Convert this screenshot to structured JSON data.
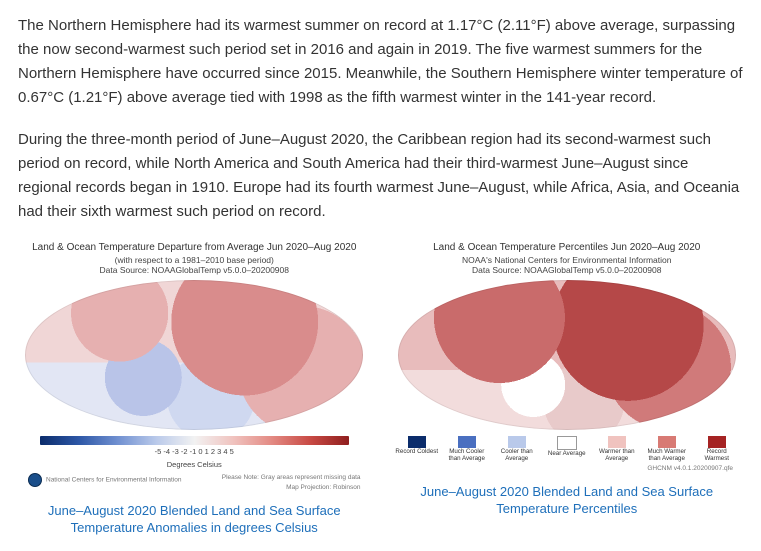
{
  "paragraphs": {
    "p1": "The Northern Hemisphere had its warmest summer on record at 1.17°C (2.11°F) above average, surpassing the now second-warmest such period set in 2016 and again in 2019. The five warmest summers for the Northern Hemisphere have occurred since 2015. Meanwhile, the Southern Hemisphere winter temperature of 0.67°C (1.21°F) above average tied with 1998 as the fifth warmest winter in the 141-year record.",
    "p2": "During the three-month period of June–August 2020, the Caribbean region had its second-warmest such period on record, while North America and South America had their third-warmest June–August since regional records began in 1910. Europe had its fourth warmest June–August, while Africa, Asia, and Oceania had their sixth warmest such period on record."
  },
  "figures": {
    "left": {
      "title": "Land & Ocean Temperature Departure from Average Jun 2020–Aug 2020",
      "subtitle1": "(with respect to a 1981–2010 base period)",
      "subtitle2": "Data Source: NOAAGlobalTemp v5.0.0–20200908",
      "legend_units": "Degrees Celsius",
      "legend_ticks": "-5  -4  -3  -2  -1   0   1   2   3   4   5",
      "gradient": {
        "stops": [
          "#0b2c6b",
          "#2d57a6",
          "#6f8fd0",
          "#b9c9ea",
          "#f2f2f2",
          "#f0c3bf",
          "#e38a83",
          "#c84a44",
          "#8f1e1e"
        ]
      },
      "footer_left": "National Centers for Environmental Information",
      "footer_right": "Please Note: Gray areas represent missing data\nMap Projection: Robinson",
      "caption": "June–August 2020 Blended Land and Sea Surface Temperature Anomalies in degrees Celsius"
    },
    "right": {
      "title": "Land & Ocean Temperature Percentiles Jun 2020–Aug 2020",
      "subtitle1": "NOAA's National Centers for Environmental Information",
      "subtitle2": "Data Source: NOAAGlobalTemp v5.0.0–20200908",
      "swatches": [
        {
          "color": "#0b2c6b",
          "label": "Record Coldest"
        },
        {
          "color": "#4a6fc0",
          "label": "Much Cooler than Average"
        },
        {
          "color": "#b9c9ea",
          "label": "Cooler than Average"
        },
        {
          "color": "#ffffff",
          "label": "Near Average"
        },
        {
          "color": "#f0c3bf",
          "label": "Warmer than Average"
        },
        {
          "color": "#d87a74",
          "label": "Much Warmer than Average"
        },
        {
          "color": "#a52323",
          "label": "Record Warmest"
        }
      ],
      "footer_right": "GHCNM v4.0.1.20200907.qfe",
      "caption": "June–August 2020 Blended Land and Sea Surface Temperature Percentiles"
    }
  },
  "colors": {
    "body_text": "#333333",
    "link_blue": "#1e6fba",
    "background": "#ffffff"
  }
}
